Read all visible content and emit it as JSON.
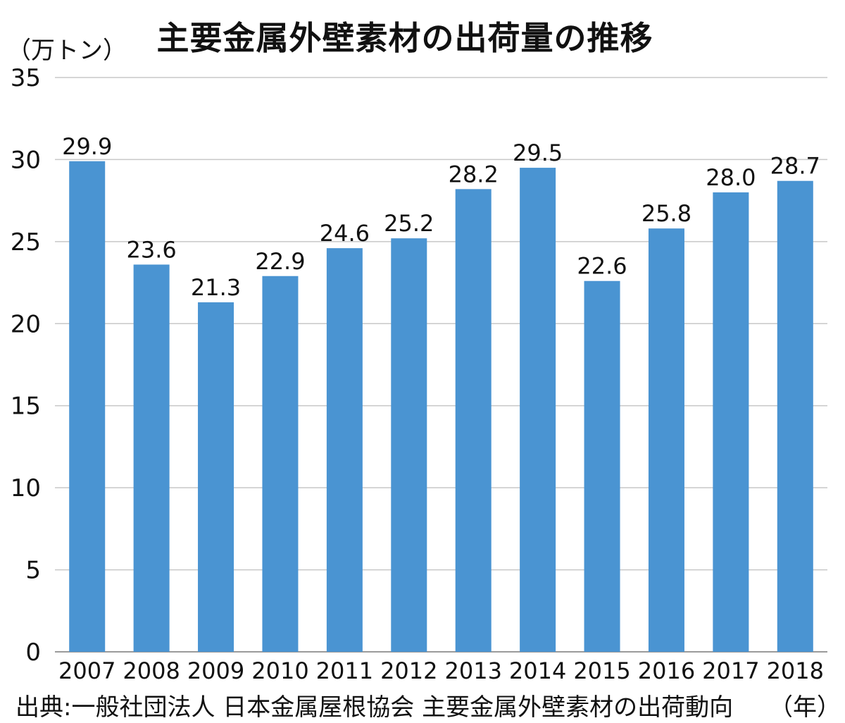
{
  "chart_data": {
    "type": "bar",
    "title": "主要金属外壁素材の出荷量の推移",
    "ylabel": "（万トン）",
    "xlabel": "（年）",
    "source": "出典:一般社団法人 日本金属屋根協会 主要金属外壁素材の出荷動向",
    "categories": [
      "2007",
      "2008",
      "2009",
      "2010",
      "2011",
      "2012",
      "2013",
      "2014",
      "2015",
      "2016",
      "2017",
      "2018"
    ],
    "values": [
      29.9,
      23.6,
      21.3,
      22.9,
      24.6,
      25.2,
      28.2,
      29.5,
      22.6,
      25.8,
      28.0,
      28.7
    ],
    "value_labels": [
      "29.9",
      "23.6",
      "21.3",
      "22.9",
      "24.6",
      "25.2",
      "28.2",
      "29.5",
      "22.6",
      "25.8",
      "28.0",
      "28.7"
    ],
    "ylim": [
      0,
      35
    ],
    "yticks": [
      "0",
      "5",
      "10",
      "15",
      "20",
      "25",
      "30",
      "35"
    ],
    "grid": true,
    "legend": "none",
    "bar_color": "#4a94d2",
    "grid_color": "#c8c8c8"
  }
}
